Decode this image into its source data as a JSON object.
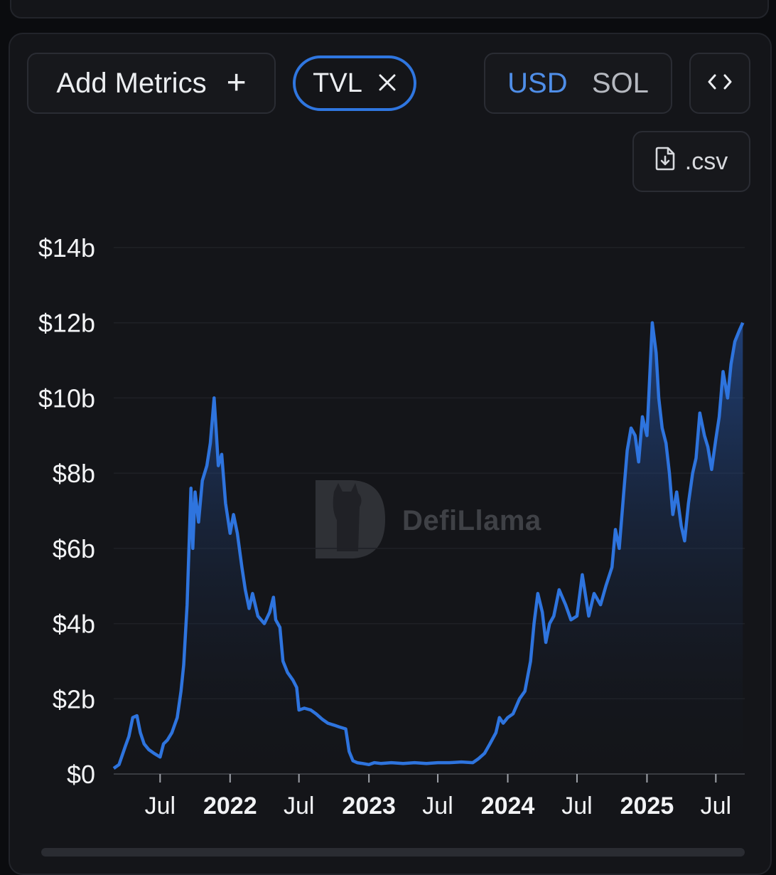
{
  "controls": {
    "add_metrics_label": "Add Metrics",
    "add_icon": "plus-icon",
    "active_metric_chip": "TVL",
    "chip_close_icon": "close-icon",
    "currency_options": [
      "USD",
      "SOL"
    ],
    "currency_selected": "USD",
    "embed_icon": "code-icon",
    "csv_label": ".csv",
    "csv_icon": "file-download-icon"
  },
  "watermark": {
    "text": "DefiLlama",
    "icon": "llama-logo-icon"
  },
  "colors": {
    "accent": "#2f76e0",
    "line": "#2e74de",
    "background": "#141519",
    "selected_text": "#4f8ee8"
  },
  "chart_data": {
    "type": "area",
    "series": [
      {
        "color": "#2e74de"
      }
    ],
    "y_unit": "USD (billions)",
    "ylim": [
      0,
      14
    ],
    "y_ticks": [
      0,
      2,
      4,
      6,
      8,
      10,
      12,
      14
    ],
    "y_tick_labels": [
      "$0",
      "$2b",
      "$4b",
      "$6b",
      "$8b",
      "$10b",
      "$12b",
      "$14b"
    ],
    "xlim": [
      "2021-03-01",
      "2025-09-15"
    ],
    "x_ticks": [
      "2021-07-01",
      "2022-01-01",
      "2022-07-01",
      "2023-01-01",
      "2023-07-01",
      "2024-01-01",
      "2024-07-01",
      "2025-01-01",
      "2025-07-01"
    ],
    "x_tick_labels": [
      "Jul",
      "2022",
      "Jul",
      "2023",
      "Jul",
      "2024",
      "Jul",
      "2025",
      "Jul"
    ],
    "x_tick_bold": [
      false,
      true,
      false,
      true,
      false,
      true,
      false,
      true,
      false
    ],
    "grid": true,
    "points": [
      [
        "2021-03-01",
        0.15
      ],
      [
        "2021-03-15",
        0.25
      ],
      [
        "2021-04-01",
        0.75
      ],
      [
        "2021-04-10",
        1.0
      ],
      [
        "2021-04-20",
        1.5
      ],
      [
        "2021-05-01",
        1.55
      ],
      [
        "2021-05-10",
        1.1
      ],
      [
        "2021-05-20",
        0.8
      ],
      [
        "2021-06-01",
        0.65
      ],
      [
        "2021-06-15",
        0.55
      ],
      [
        "2021-07-01",
        0.45
      ],
      [
        "2021-07-10",
        0.8
      ],
      [
        "2021-07-20",
        0.9
      ],
      [
        "2021-08-01",
        1.1
      ],
      [
        "2021-08-15",
        1.5
      ],
      [
        "2021-08-25",
        2.2
      ],
      [
        "2021-09-01",
        2.9
      ],
      [
        "2021-09-10",
        4.5
      ],
      [
        "2021-09-20",
        7.6
      ],
      [
        "2021-09-25",
        6.0
      ],
      [
        "2021-10-01",
        7.5
      ],
      [
        "2021-10-10",
        6.7
      ],
      [
        "2021-10-20",
        7.8
      ],
      [
        "2021-11-01",
        8.2
      ],
      [
        "2021-11-10",
        8.8
      ],
      [
        "2021-11-20",
        10.0
      ],
      [
        "2021-11-25",
        9.2
      ],
      [
        "2021-12-01",
        8.2
      ],
      [
        "2021-12-10",
        8.5
      ],
      [
        "2021-12-20",
        7.2
      ],
      [
        "2022-01-01",
        6.4
      ],
      [
        "2022-01-10",
        6.9
      ],
      [
        "2022-01-20",
        6.4
      ],
      [
        "2022-02-01",
        5.5
      ],
      [
        "2022-02-10",
        4.9
      ],
      [
        "2022-02-20",
        4.4
      ],
      [
        "2022-03-01",
        4.8
      ],
      [
        "2022-03-15",
        4.2
      ],
      [
        "2022-04-01",
        4.0
      ],
      [
        "2022-04-15",
        4.3
      ],
      [
        "2022-04-25",
        4.7
      ],
      [
        "2022-05-01",
        4.1
      ],
      [
        "2022-05-12",
        3.9
      ],
      [
        "2022-05-20",
        3.0
      ],
      [
        "2022-06-01",
        2.7
      ],
      [
        "2022-06-15",
        2.5
      ],
      [
        "2022-06-25",
        2.3
      ],
      [
        "2022-07-01",
        1.7
      ],
      [
        "2022-07-15",
        1.75
      ],
      [
        "2022-08-01",
        1.7
      ],
      [
        "2022-08-15",
        1.6
      ],
      [
        "2022-09-01",
        1.45
      ],
      [
        "2022-09-15",
        1.35
      ],
      [
        "2022-10-01",
        1.3
      ],
      [
        "2022-10-15",
        1.25
      ],
      [
        "2022-11-01",
        1.2
      ],
      [
        "2022-11-10",
        0.6
      ],
      [
        "2022-11-20",
        0.35
      ],
      [
        "2022-12-01",
        0.3
      ],
      [
        "2022-12-15",
        0.28
      ],
      [
        "2023-01-01",
        0.25
      ],
      [
        "2023-01-15",
        0.3
      ],
      [
        "2023-02-01",
        0.28
      ],
      [
        "2023-03-01",
        0.3
      ],
      [
        "2023-04-01",
        0.28
      ],
      [
        "2023-05-01",
        0.3
      ],
      [
        "2023-06-01",
        0.28
      ],
      [
        "2023-07-01",
        0.3
      ],
      [
        "2023-08-01",
        0.3
      ],
      [
        "2023-09-01",
        0.32
      ],
      [
        "2023-10-01",
        0.3
      ],
      [
        "2023-10-15",
        0.4
      ],
      [
        "2023-11-01",
        0.55
      ],
      [
        "2023-11-15",
        0.8
      ],
      [
        "2023-12-01",
        1.1
      ],
      [
        "2023-12-10",
        1.5
      ],
      [
        "2023-12-20",
        1.35
      ],
      [
        "2024-01-01",
        1.5
      ],
      [
        "2024-01-15",
        1.6
      ],
      [
        "2024-02-01",
        2.0
      ],
      [
        "2024-02-15",
        2.2
      ],
      [
        "2024-03-01",
        3.0
      ],
      [
        "2024-03-10",
        4.0
      ],
      [
        "2024-03-20",
        4.8
      ],
      [
        "2024-04-01",
        4.3
      ],
      [
        "2024-04-10",
        3.5
      ],
      [
        "2024-04-20",
        4.0
      ],
      [
        "2024-05-01",
        4.2
      ],
      [
        "2024-05-15",
        4.9
      ],
      [
        "2024-06-01",
        4.5
      ],
      [
        "2024-06-15",
        4.1
      ],
      [
        "2024-07-01",
        4.2
      ],
      [
        "2024-07-15",
        5.3
      ],
      [
        "2024-08-01",
        4.2
      ],
      [
        "2024-08-15",
        4.8
      ],
      [
        "2024-09-01",
        4.5
      ],
      [
        "2024-09-15",
        5.0
      ],
      [
        "2024-10-01",
        5.5
      ],
      [
        "2024-10-10",
        6.5
      ],
      [
        "2024-10-20",
        6.0
      ],
      [
        "2024-11-01",
        7.5
      ],
      [
        "2024-11-10",
        8.6
      ],
      [
        "2024-11-20",
        9.2
      ],
      [
        "2024-12-01",
        9.0
      ],
      [
        "2024-12-10",
        8.3
      ],
      [
        "2024-12-20",
        9.5
      ],
      [
        "2025-01-01",
        9.0
      ],
      [
        "2025-01-15",
        12.0
      ],
      [
        "2025-01-25",
        11.2
      ],
      [
        "2025-02-01",
        10.0
      ],
      [
        "2025-02-10",
        9.2
      ],
      [
        "2025-02-20",
        8.8
      ],
      [
        "2025-03-01",
        8.0
      ],
      [
        "2025-03-10",
        6.9
      ],
      [
        "2025-03-20",
        7.5
      ],
      [
        "2025-04-01",
        6.6
      ],
      [
        "2025-04-10",
        6.2
      ],
      [
        "2025-04-20",
        7.2
      ],
      [
        "2025-05-01",
        8.0
      ],
      [
        "2025-05-10",
        8.4
      ],
      [
        "2025-05-20",
        9.6
      ],
      [
        "2025-06-01",
        9.0
      ],
      [
        "2025-06-10",
        8.7
      ],
      [
        "2025-06-20",
        8.1
      ],
      [
        "2025-07-01",
        8.9
      ],
      [
        "2025-07-10",
        9.5
      ],
      [
        "2025-07-20",
        10.7
      ],
      [
        "2025-08-01",
        10.0
      ],
      [
        "2025-08-10",
        10.9
      ],
      [
        "2025-08-20",
        11.5
      ],
      [
        "2025-09-01",
        11.8
      ],
      [
        "2025-09-10",
        12.0
      ]
    ]
  }
}
